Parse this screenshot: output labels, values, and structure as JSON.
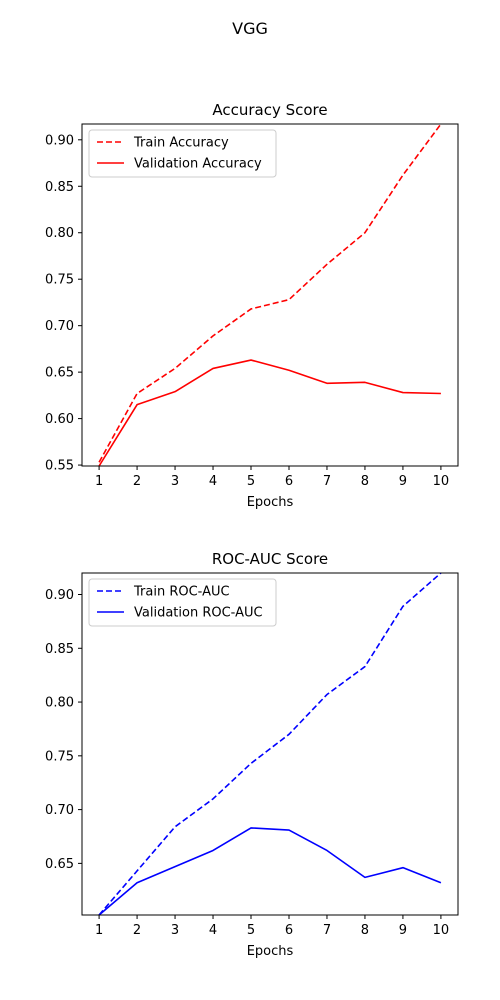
{
  "figure": {
    "suptitle": "VGG"
  },
  "chart_data": [
    {
      "type": "line",
      "title": "Accuracy Score",
      "xlabel": "Epochs",
      "ylabel": "",
      "x": [
        1,
        2,
        3,
        4,
        5,
        6,
        7,
        8,
        9,
        10
      ],
      "xticks": [
        "1",
        "2",
        "3",
        "4",
        "5",
        "6",
        "7",
        "8",
        "9",
        "10"
      ],
      "yticks": [
        "0.55",
        "0.60",
        "0.65",
        "0.70",
        "0.75",
        "0.80",
        "0.85",
        "0.90"
      ],
      "ylim": [
        0.549,
        0.917
      ],
      "xlim": [
        0.55,
        10.45
      ],
      "grid": false,
      "legend_position": "upper-left",
      "series": [
        {
          "name": "Train Accuracy",
          "style": "dashed",
          "color": "#ff0000",
          "values": [
            0.553,
            0.627,
            0.654,
            0.689,
            0.718,
            0.728,
            0.766,
            0.8,
            0.862,
            0.917
          ]
        },
        {
          "name": "Validation Accuracy",
          "style": "solid",
          "color": "#ff0000",
          "values": [
            0.549,
            0.615,
            0.629,
            0.654,
            0.663,
            0.652,
            0.638,
            0.639,
            0.628,
            0.627
          ]
        }
      ]
    },
    {
      "type": "line",
      "title": "ROC-AUC Score",
      "xlabel": "Epochs",
      "ylabel": "",
      "x": [
        1,
        2,
        3,
        4,
        5,
        6,
        7,
        8,
        9,
        10
      ],
      "xticks": [
        "1",
        "2",
        "3",
        "4",
        "5",
        "6",
        "7",
        "8",
        "9",
        "10"
      ],
      "yticks": [
        "0.65",
        "0.70",
        "0.75",
        "0.80",
        "0.85",
        "0.90"
      ],
      "ylim": [
        0.602,
        0.92
      ],
      "xlim": [
        0.55,
        10.45
      ],
      "grid": false,
      "legend_position": "upper-left",
      "series": [
        {
          "name": "Train ROC-AUC",
          "style": "dashed",
          "color": "#0000ff",
          "values": [
            0.602,
            0.643,
            0.684,
            0.71,
            0.743,
            0.77,
            0.807,
            0.833,
            0.889,
            0.92
          ]
        },
        {
          "name": "Validation ROC-AUC",
          "style": "solid",
          "color": "#0000ff",
          "values": [
            0.602,
            0.632,
            0.647,
            0.662,
            0.683,
            0.681,
            0.662,
            0.637,
            0.646,
            0.632
          ]
        }
      ]
    }
  ]
}
